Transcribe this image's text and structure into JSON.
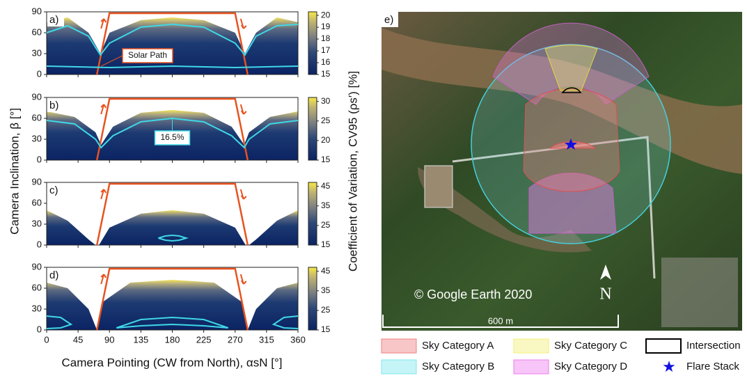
{
  "figure": {
    "x_label": "Camera Pointing (CW from North), αsN [°]",
    "y_label": "Camera Inclination, β [°]",
    "colorbar_label": "Coefficient of Variation, CV95 (ρs′) [%]"
  },
  "chart_data": [
    {
      "type": "line",
      "panel": "a)",
      "xlim": [
        0,
        360
      ],
      "ylim": [
        0,
        90
      ],
      "yticks": [
        0,
        30,
        60,
        90
      ],
      "colorbar": {
        "lim": [
          15,
          20.3
        ],
        "ticks": [
          15,
          16,
          17,
          18,
          19,
          20
        ]
      },
      "annotation": "Solar Path",
      "series": [
        {
          "color": "#e8521f",
          "x": [
            72,
            90,
            270,
            288
          ],
          "values": [
            0,
            88,
            88,
            0
          ]
        },
        {
          "color": "#3fd8e6",
          "x": [
            0,
            30,
            60,
            77,
            90,
            135,
            180,
            225,
            270,
            284,
            300,
            330,
            360
          ],
          "values": [
            60,
            70,
            55,
            28,
            45,
            68,
            72,
            68,
            45,
            28,
            55,
            70,
            72
          ]
        },
        {
          "color": "#3fd8e6",
          "x": [
            0,
            90,
            180,
            270,
            360
          ],
          "values": [
            12,
            10,
            12,
            10,
            12
          ]
        }
      ]
    },
    {
      "type": "line",
      "panel": "b)",
      "xlim": [
        0,
        360
      ],
      "ylim": [
        0,
        90
      ],
      "yticks": [
        0,
        30,
        60,
        90
      ],
      "colorbar": {
        "lim": [
          15,
          31
        ],
        "ticks": [
          15,
          20,
          25,
          30
        ]
      },
      "annotation": "16.5%",
      "series": [
        {
          "color": "#e8521f",
          "x": [
            72,
            90,
            270,
            288
          ],
          "values": [
            0,
            88,
            88,
            0
          ]
        },
        {
          "color": "#3fd8e6",
          "x": [
            0,
            40,
            70,
            78,
            95,
            135,
            180,
            225,
            265,
            283,
            290,
            320,
            360
          ],
          "values": [
            57,
            52,
            30,
            18,
            35,
            55,
            60,
            55,
            35,
            18,
            30,
            52,
            57
          ]
        }
      ]
    },
    {
      "type": "line",
      "panel": "c)",
      "xlim": [
        0,
        360
      ],
      "ylim": [
        0,
        90
      ],
      "yticks": [
        0,
        30,
        60,
        90
      ],
      "colorbar": {
        "lim": [
          15,
          47
        ],
        "ticks": [
          15,
          25,
          35,
          45
        ]
      },
      "series": [
        {
          "color": "#e8521f",
          "x": [
            72,
            90,
            270,
            288
          ],
          "values": [
            0,
            88,
            88,
            0
          ]
        },
        {
          "color": "#3fd8e6",
          "x": [
            160,
            170,
            180,
            190,
            200,
            190,
            180,
            170,
            160
          ],
          "values": [
            10,
            13,
            14,
            13,
            10,
            7,
            6,
            7,
            10
          ]
        }
      ]
    },
    {
      "type": "line",
      "panel": "d)",
      "xlim": [
        0,
        360
      ],
      "ylim": [
        0,
        90
      ],
      "yticks": [
        0,
        30,
        60,
        90
      ],
      "xticks": [
        0,
        45,
        90,
        135,
        180,
        225,
        270,
        315,
        360
      ],
      "colorbar": {
        "lim": [
          15,
          47
        ],
        "ticks": [
          15,
          25,
          35,
          45
        ]
      },
      "series": [
        {
          "color": "#e8521f",
          "x": [
            72,
            90,
            270,
            288
          ],
          "values": [
            0,
            88,
            88,
            0
          ]
        },
        {
          "color": "#3fd8e6",
          "x": [
            0,
            20,
            35,
            20,
            0
          ],
          "values": [
            20,
            18,
            8,
            3,
            2
          ]
        },
        {
          "color": "#3fd8e6",
          "x": [
            100,
            135,
            180,
            225,
            260,
            225,
            180,
            135,
            100
          ],
          "values": [
            3,
            15,
            18,
            15,
            3,
            6,
            8,
            6,
            3
          ]
        },
        {
          "color": "#3fd8e6",
          "x": [
            360,
            340,
            325,
            340,
            360
          ],
          "values": [
            20,
            18,
            8,
            3,
            2
          ]
        }
      ]
    }
  ],
  "map": {
    "panel": "e)",
    "credit": "© Google Earth 2020",
    "scale": "600 m",
    "north": "N",
    "legend": [
      {
        "label": "Sky Category A",
        "color": "#f08080"
      },
      {
        "label": "Sky Category C",
        "color": "#f2ef7a"
      },
      {
        "label": "Intersection",
        "color": "#000000"
      },
      {
        "label": "Sky Category B",
        "color": "#7fe8ee"
      },
      {
        "label": "Sky Category D",
        "color": "#ee7fee"
      },
      {
        "label": "Flare Stack",
        "color": "#1010e0"
      }
    ]
  }
}
